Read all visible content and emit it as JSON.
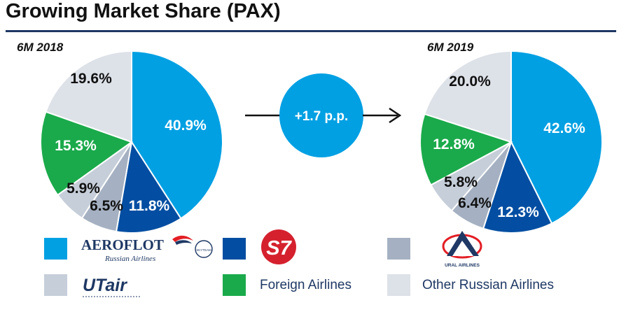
{
  "title": "Growing Market Share (PAX)",
  "colors": {
    "Aeroflot": "#00a0e3",
    "S7": "#034ea2",
    "Ural Airlines": "#a5b1c2",
    "UTair": "#c5ced9",
    "Foreign Airlines": "#1aaa4b",
    "Other Russian Airlines": "#dde1e8"
  },
  "chart_data": [
    {
      "type": "pie",
      "title": "6M 2018",
      "labels": [
        "Aeroflot",
        "S7",
        "Ural Airlines",
        "UTair",
        "Foreign Airlines",
        "Other Russian Airlines"
      ],
      "values": [
        40.9,
        11.8,
        6.5,
        5.9,
        15.3,
        19.6
      ],
      "value_labels": [
        "40.9%",
        "11.8%",
        "6.5%",
        "5.9%",
        "15.3%",
        "19.6%"
      ]
    },
    {
      "type": "pie",
      "title": "6M 2019",
      "labels": [
        "Aeroflot",
        "S7",
        "Ural Airlines",
        "UTair",
        "Foreign Airlines",
        "Other Russian Airlines"
      ],
      "values": [
        42.6,
        12.3,
        6.4,
        5.8,
        12.8,
        20.0
      ],
      "value_labels": [
        "42.6%",
        "12.3%",
        "6.4%",
        "5.8%",
        "12.8%",
        "20.0%"
      ]
    }
  ],
  "change": {
    "label": "+1.7 p.p."
  },
  "legend": {
    "aeroflot": {
      "wordmark": "AEROFLOT",
      "sub": "Russian Airlines",
      "alliance": "SKYTEAM"
    },
    "s7": {
      "logo": "S7"
    },
    "ural": {
      "logo": "URAL AIRLINES"
    },
    "utair": {
      "logo": "UTair"
    },
    "foreign": "Foreign Airlines",
    "other": "Other Russian Airlines"
  }
}
